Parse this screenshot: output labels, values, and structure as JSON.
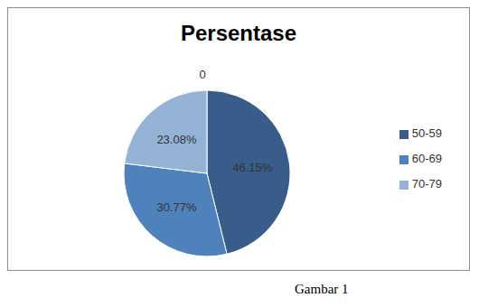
{
  "chart_data": {
    "type": "pie",
    "title": "Persentase",
    "categories": [
      "50-59",
      "60-69",
      "70-79"
    ],
    "values": [
      46.15,
      30.77,
      23.08
    ],
    "value_labels": [
      "46.15%",
      "30.77%",
      "23.08%"
    ],
    "colors": [
      "#385d8a",
      "#4f81bd",
      "#95b3d7"
    ],
    "data_labels": true,
    "legend": "right",
    "annotations": [
      "0"
    ]
  },
  "caption": "Gambar 1"
}
